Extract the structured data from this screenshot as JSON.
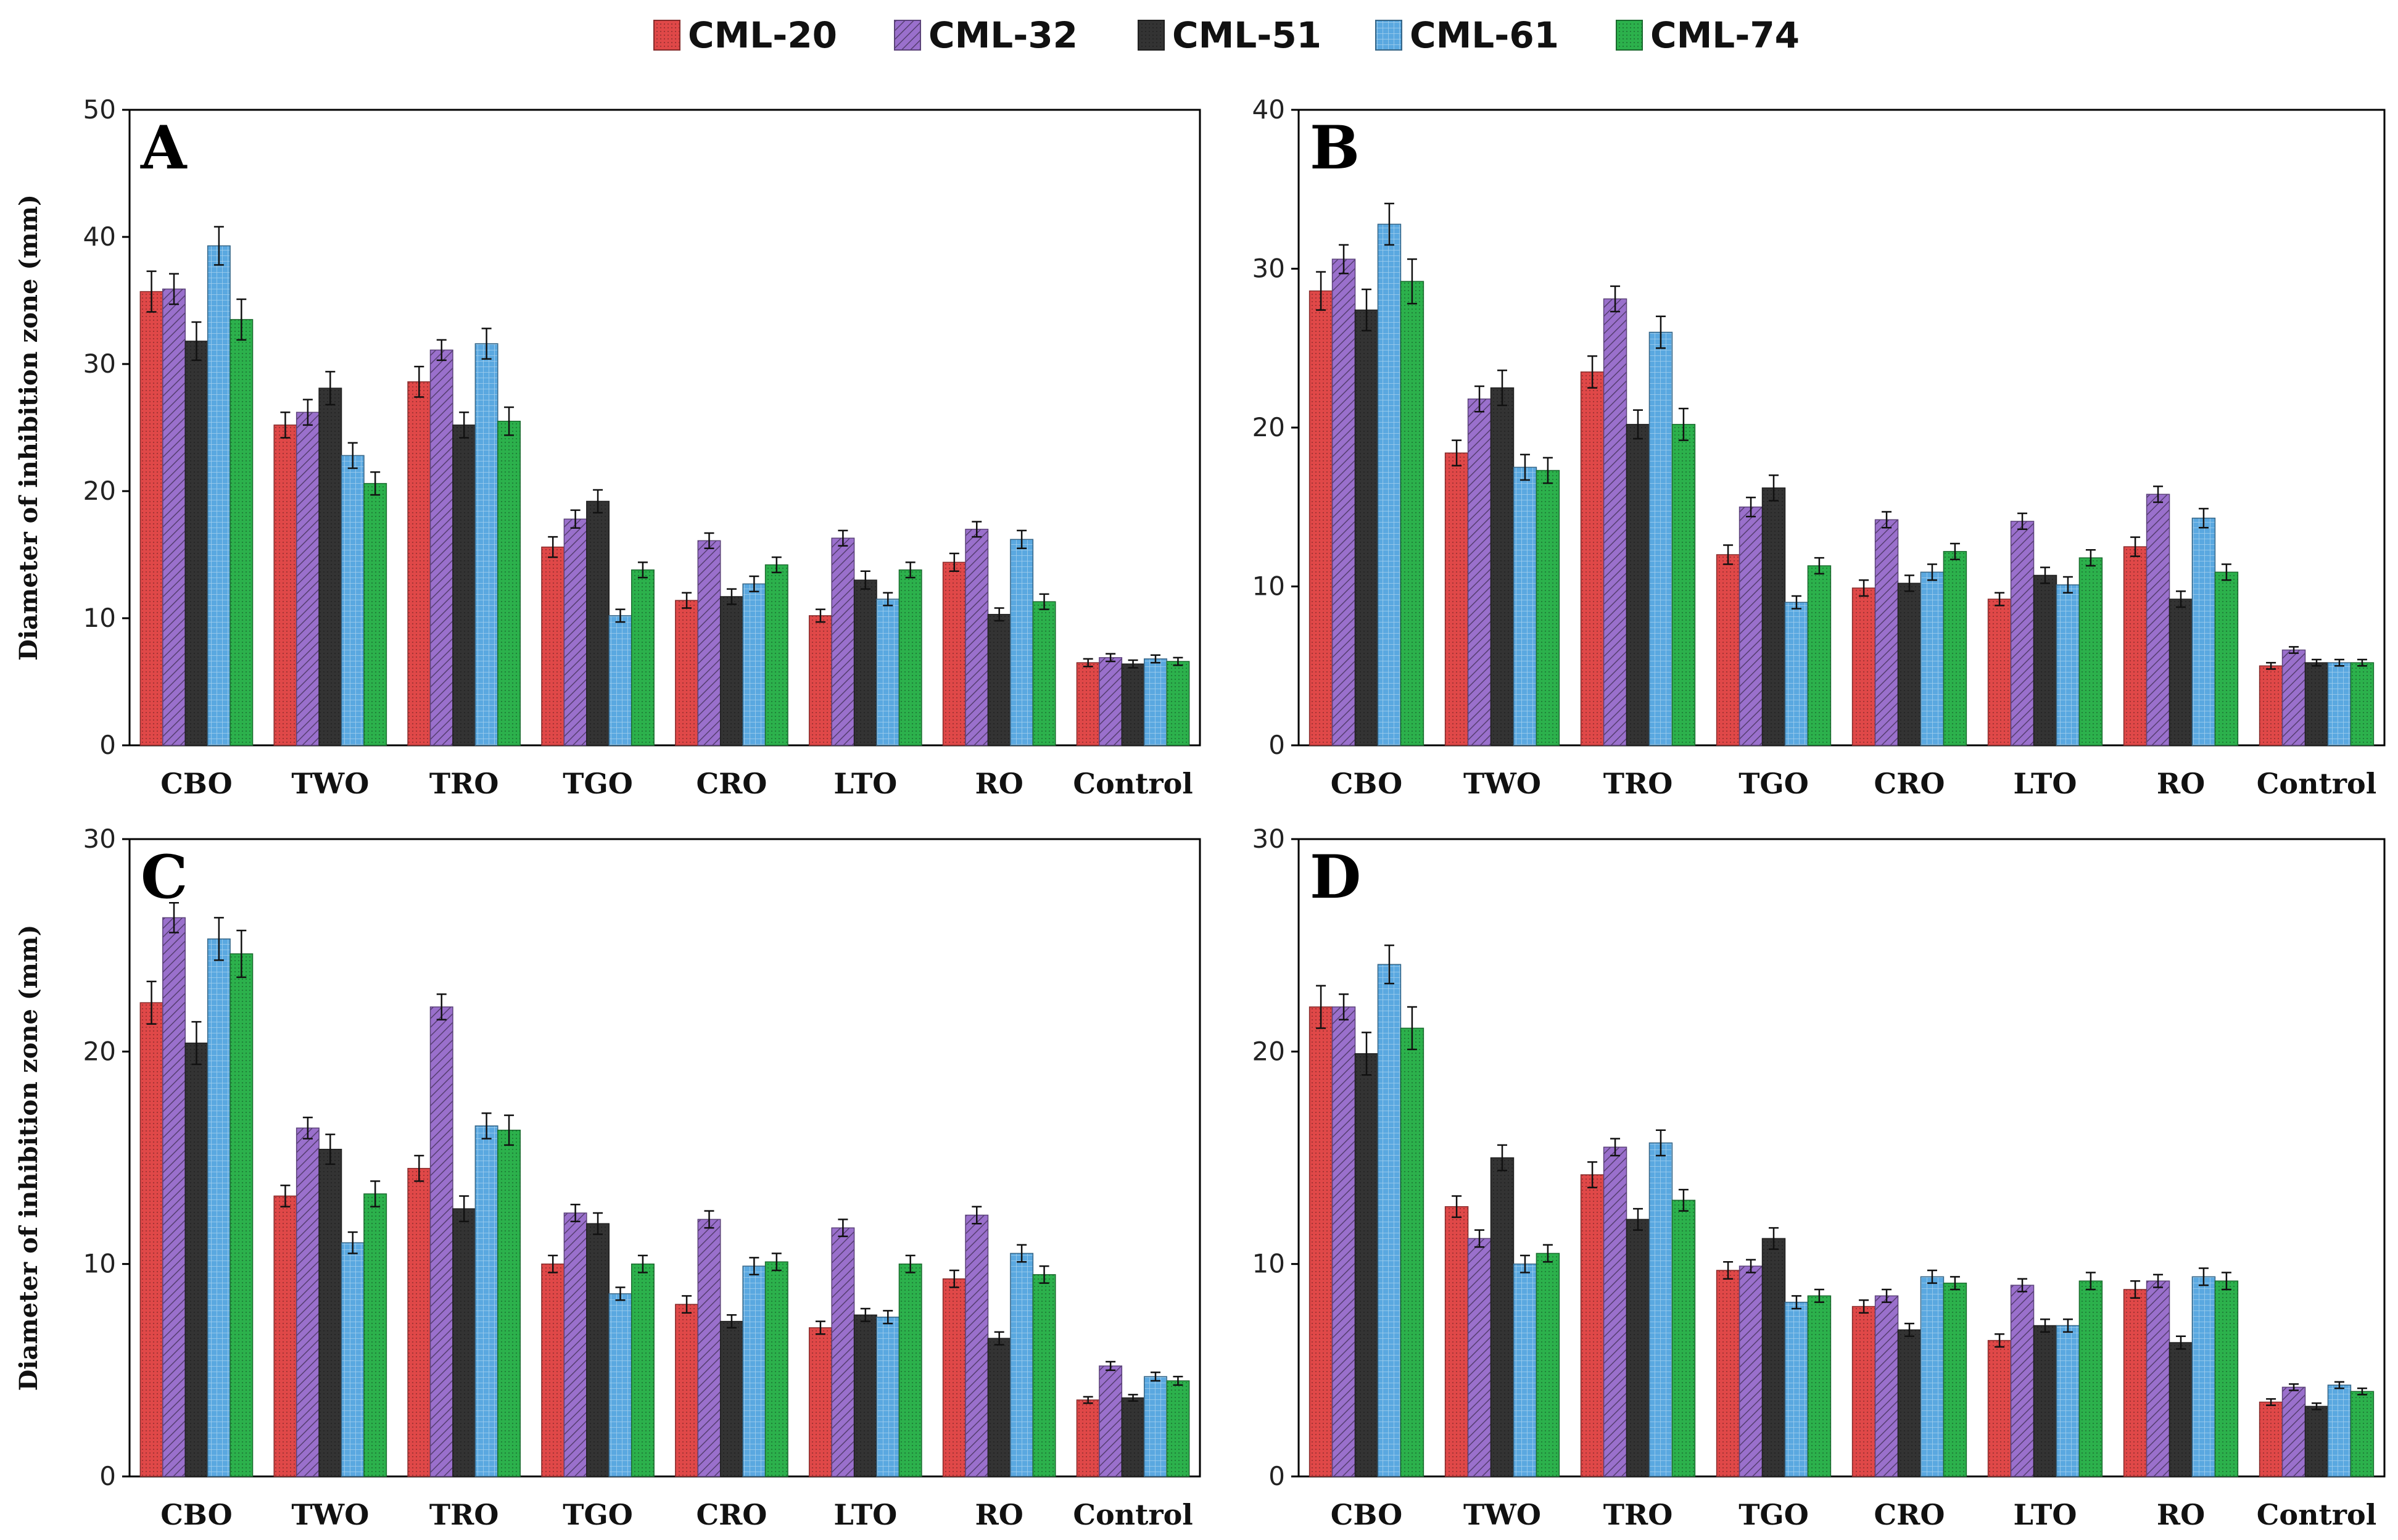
{
  "legend": [
    {
      "name": "CML-20",
      "color": "#e04848",
      "pattern": "dots"
    },
    {
      "name": "CML-32",
      "color": "#9a70cc",
      "pattern": "diagonal"
    },
    {
      "name": "CML-51",
      "color": "#333333",
      "pattern": "dots"
    },
    {
      "name": "CML-61",
      "color": "#5aa8e0",
      "pattern": "grid"
    },
    {
      "name": "CML-74",
      "color": "#2cb14c",
      "pattern": "dots"
    }
  ],
  "chart_data": [
    {
      "type": "bar",
      "panel": "A",
      "ylabel": "Diameter of inhibition zone (mm)",
      "ylim": [
        0,
        50
      ],
      "yticks": [
        0,
        10,
        20,
        30,
        40,
        50
      ],
      "categories": [
        "CBO",
        "TWO",
        "TRO",
        "TGO",
        "CRO",
        "LTO",
        "RO",
        "Control"
      ],
      "series": [
        {
          "name": "CML-20",
          "values": [
            35.7,
            25.2,
            28.6,
            15.6,
            11.4,
            10.2,
            14.4,
            6.5
          ],
          "errors": [
            1.6,
            1.0,
            1.2,
            0.8,
            0.6,
            0.5,
            0.7,
            0.3
          ]
        },
        {
          "name": "CML-32",
          "values": [
            35.9,
            26.2,
            31.1,
            17.8,
            16.1,
            16.3,
            17.0,
            6.9
          ],
          "errors": [
            1.2,
            1.0,
            0.8,
            0.7,
            0.6,
            0.6,
            0.6,
            0.3
          ]
        },
        {
          "name": "CML-51",
          "values": [
            31.8,
            28.1,
            25.2,
            19.2,
            11.7,
            13.0,
            10.3,
            6.4
          ],
          "errors": [
            1.5,
            1.3,
            1.0,
            0.9,
            0.6,
            0.7,
            0.5,
            0.3
          ]
        },
        {
          "name": "CML-61",
          "values": [
            39.3,
            22.8,
            31.6,
            10.2,
            12.7,
            11.5,
            16.2,
            6.8
          ],
          "errors": [
            1.5,
            1.0,
            1.2,
            0.5,
            0.6,
            0.5,
            0.7,
            0.3
          ]
        },
        {
          "name": "CML-74",
          "values": [
            33.5,
            20.6,
            25.5,
            13.8,
            14.2,
            13.8,
            11.3,
            6.6
          ],
          "errors": [
            1.6,
            0.9,
            1.1,
            0.6,
            0.6,
            0.6,
            0.6,
            0.3
          ]
        }
      ]
    },
    {
      "type": "bar",
      "panel": "B",
      "ylabel": "",
      "ylim": [
        0,
        40
      ],
      "yticks": [
        0,
        10,
        20,
        30,
        40
      ],
      "categories": [
        "CBO",
        "TWO",
        "TRO",
        "TGO",
        "CRO",
        "LTO",
        "RO",
        "Control"
      ],
      "series": [
        {
          "name": "CML-20",
          "values": [
            28.6,
            18.4,
            23.5,
            12.0,
            9.9,
            9.2,
            12.5,
            5.0
          ],
          "errors": [
            1.2,
            0.8,
            1.0,
            0.6,
            0.5,
            0.4,
            0.6,
            0.2
          ]
        },
        {
          "name": "CML-32",
          "values": [
            30.6,
            21.8,
            28.1,
            15.0,
            14.2,
            14.1,
            15.8,
            6.0
          ],
          "errors": [
            0.9,
            0.8,
            0.8,
            0.6,
            0.5,
            0.5,
            0.5,
            0.2
          ]
        },
        {
          "name": "CML-51",
          "values": [
            27.4,
            22.5,
            20.2,
            16.2,
            10.2,
            10.7,
            9.2,
            5.2
          ],
          "errors": [
            1.3,
            1.1,
            0.9,
            0.8,
            0.5,
            0.5,
            0.5,
            0.2
          ]
        },
        {
          "name": "CML-61",
          "values": [
            32.8,
            17.5,
            26.0,
            9.0,
            10.9,
            10.1,
            14.3,
            5.2
          ],
          "errors": [
            1.3,
            0.8,
            1.0,
            0.4,
            0.5,
            0.5,
            0.6,
            0.2
          ]
        },
        {
          "name": "CML-74",
          "values": [
            29.2,
            17.3,
            20.2,
            11.3,
            12.2,
            11.8,
            10.9,
            5.2
          ],
          "errors": [
            1.4,
            0.8,
            1.0,
            0.5,
            0.5,
            0.5,
            0.5,
            0.2
          ]
        }
      ]
    },
    {
      "type": "bar",
      "panel": "C",
      "ylabel": "Diameter of inhibition zone (mm)",
      "ylim": [
        0,
        30
      ],
      "yticks": [
        0,
        10,
        20,
        30
      ],
      "categories": [
        "CBO",
        "TWO",
        "TRO",
        "TGO",
        "CRO",
        "LTO",
        "RO",
        "Control"
      ],
      "series": [
        {
          "name": "CML-20",
          "values": [
            22.3,
            13.2,
            14.5,
            10.0,
            8.1,
            7.0,
            9.3,
            3.6
          ],
          "errors": [
            1.0,
            0.5,
            0.6,
            0.4,
            0.4,
            0.3,
            0.4,
            0.15
          ]
        },
        {
          "name": "CML-32",
          "values": [
            26.3,
            16.4,
            22.1,
            12.4,
            12.1,
            11.7,
            12.3,
            5.2
          ],
          "errors": [
            0.7,
            0.5,
            0.6,
            0.4,
            0.4,
            0.4,
            0.4,
            0.2
          ]
        },
        {
          "name": "CML-51",
          "values": [
            20.4,
            15.4,
            12.6,
            11.9,
            7.3,
            7.6,
            6.5,
            3.7
          ],
          "errors": [
            1.0,
            0.7,
            0.6,
            0.5,
            0.3,
            0.3,
            0.3,
            0.15
          ]
        },
        {
          "name": "CML-61",
          "values": [
            25.3,
            11.0,
            16.5,
            8.6,
            9.9,
            7.5,
            10.5,
            4.7
          ],
          "errors": [
            1.0,
            0.5,
            0.6,
            0.3,
            0.4,
            0.3,
            0.4,
            0.2
          ]
        },
        {
          "name": "CML-74",
          "values": [
            24.6,
            13.3,
            16.3,
            10.0,
            10.1,
            10.0,
            9.5,
            4.5
          ],
          "errors": [
            1.1,
            0.6,
            0.7,
            0.4,
            0.4,
            0.4,
            0.4,
            0.2
          ]
        }
      ]
    },
    {
      "type": "bar",
      "panel": "D",
      "ylabel": "",
      "ylim": [
        0,
        30
      ],
      "yticks": [
        0,
        10,
        20,
        30
      ],
      "categories": [
        "CBO",
        "TWO",
        "TRO",
        "TGO",
        "CRO",
        "LTO",
        "RO",
        "Control"
      ],
      "series": [
        {
          "name": "CML-20",
          "values": [
            22.1,
            12.7,
            14.2,
            9.7,
            8.0,
            6.4,
            8.8,
            3.5
          ],
          "errors": [
            1.0,
            0.5,
            0.6,
            0.4,
            0.3,
            0.3,
            0.4,
            0.15
          ]
        },
        {
          "name": "CML-32",
          "values": [
            22.1,
            11.2,
            15.5,
            9.9,
            8.5,
            9.0,
            9.2,
            4.2
          ],
          "errors": [
            0.6,
            0.4,
            0.4,
            0.3,
            0.3,
            0.3,
            0.3,
            0.15
          ]
        },
        {
          "name": "CML-51",
          "values": [
            19.9,
            15.0,
            12.1,
            11.2,
            6.9,
            7.1,
            6.3,
            3.3
          ],
          "errors": [
            1.0,
            0.6,
            0.5,
            0.5,
            0.3,
            0.3,
            0.3,
            0.15
          ]
        },
        {
          "name": "CML-61",
          "values": [
            24.1,
            10.0,
            15.7,
            8.2,
            9.4,
            7.1,
            9.4,
            4.3
          ],
          "errors": [
            0.9,
            0.4,
            0.6,
            0.3,
            0.3,
            0.3,
            0.4,
            0.15
          ]
        },
        {
          "name": "CML-74",
          "values": [
            21.1,
            10.5,
            13.0,
            8.5,
            9.1,
            9.2,
            9.2,
            4.0
          ],
          "errors": [
            1.0,
            0.4,
            0.5,
            0.3,
            0.3,
            0.4,
            0.4,
            0.15
          ]
        }
      ]
    }
  ]
}
